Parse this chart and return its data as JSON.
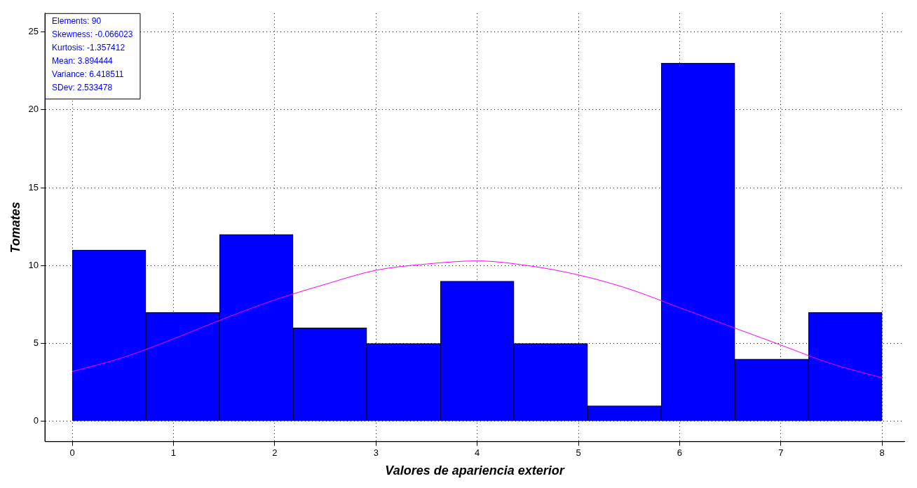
{
  "chart_data": {
    "type": "histogram",
    "xlabel": "Valores de apariencia exterior",
    "ylabel": "Tomates",
    "bins": [
      0,
      0.7273,
      1.4545,
      2.1818,
      2.9091,
      3.6364,
      4.3636,
      5.0909,
      5.8182,
      6.5455,
      7.2727,
      8
    ],
    "values": [
      11,
      7,
      12,
      6,
      5,
      9,
      5,
      1,
      23,
      4,
      7
    ],
    "color": "#0000ff",
    "series": [
      {
        "type": "line",
        "color": "#ff00ff",
        "x": [
          0,
          0.5,
          1,
          1.5,
          2,
          2.5,
          3,
          3.5,
          4,
          4.5,
          5,
          5.5,
          6,
          6.5,
          7,
          7.5,
          8
        ],
        "values": [
          3.2,
          4.1,
          5.3,
          6.6,
          7.8,
          8.8,
          9.7,
          10.1,
          10.3,
          10.0,
          9.4,
          8.5,
          7.3,
          6.1,
          4.9,
          3.7,
          2.8
        ]
      }
    ],
    "xlim": [
      -0.27,
      8.22
    ],
    "ylim": [
      -1.3,
      26.2
    ],
    "xticks": [
      0,
      1,
      2,
      3,
      4,
      5,
      6,
      7,
      8
    ],
    "yticks": [
      0,
      5,
      10,
      15,
      20,
      25
    ],
    "grid": true,
    "legend": false,
    "annotations": [
      "Elements: 90",
      "Skewness: -0.066023",
      "Kurtosis: -1.357412",
      "Mean: 3.894444",
      "Variance: 6.418511",
      "SDev: 2.533478"
    ]
  }
}
